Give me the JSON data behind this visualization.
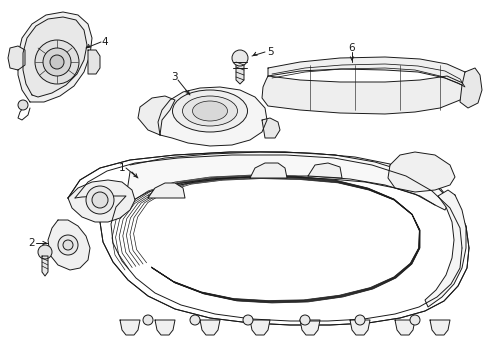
{
  "background_color": "#ffffff",
  "line_color": "#1a1a1a",
  "line_width": 0.7,
  "fig_width": 4.9,
  "fig_height": 3.6,
  "dpi": 100
}
